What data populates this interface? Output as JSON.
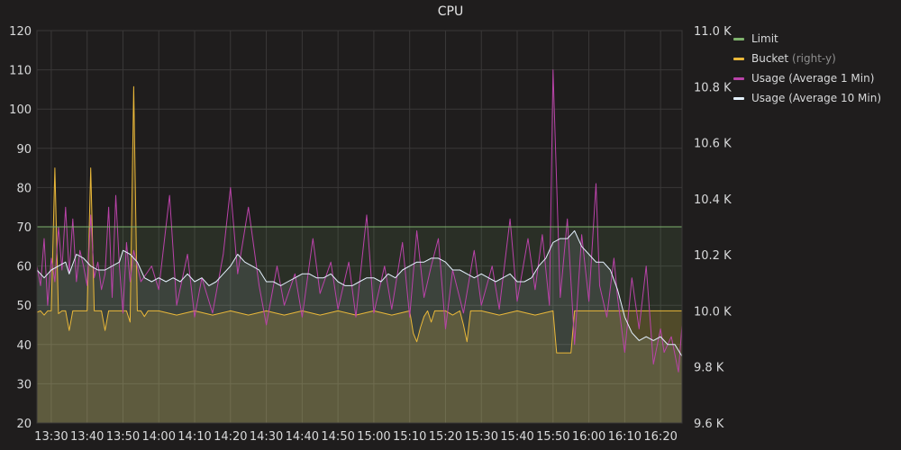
{
  "chart_data": {
    "type": "line",
    "title": "CPU",
    "x_ticks": [
      "13:30",
      "13:40",
      "13:50",
      "14:00",
      "14:10",
      "14:20",
      "14:30",
      "14:40",
      "14:50",
      "15:00",
      "15:10",
      "15:20",
      "15:30",
      "15:40",
      "15:50",
      "16:00",
      "16:10",
      "16:20"
    ],
    "y_left_ticks": [
      "20",
      "30",
      "40",
      "50",
      "60",
      "70",
      "80",
      "90",
      "100",
      "110",
      "120"
    ],
    "y_right_ticks": [
      "9.6 K",
      "9.8 K",
      "10.0 K",
      "10.2 K",
      "10.4 K",
      "10.6 K",
      "10.8 K",
      "11.0 K"
    ],
    "ylim_left": [
      20,
      120
    ],
    "ylim_right": [
      9600,
      11000
    ],
    "time_start": "13:26",
    "time_end": "16:26",
    "grid": true,
    "legend_position": "right",
    "series": [
      {
        "name": "Limit",
        "axis": "left",
        "color": "#7eb26d",
        "points": [
          [
            "13:26",
            70
          ],
          [
            "16:26",
            70
          ]
        ]
      },
      {
        "name": "Bucket",
        "note": "(right-y)",
        "axis": "right",
        "color": "#eab839",
        "points": [
          [
            "13:26",
            9995
          ],
          [
            "13:27",
            10000
          ],
          [
            "13:28",
            9985
          ],
          [
            "13:29",
            10000
          ],
          [
            "13:30",
            10000
          ],
          [
            "13:31",
            10510
          ],
          [
            "13:32",
            9990
          ],
          [
            "13:33",
            10000
          ],
          [
            "13:34",
            10000
          ],
          [
            "13:35",
            9930
          ],
          [
            "13:36",
            10000
          ],
          [
            "13:37",
            10000
          ],
          [
            "13:38",
            10000
          ],
          [
            "13:39",
            10000
          ],
          [
            "13:40",
            10000
          ],
          [
            "13:41",
            10510
          ],
          [
            "13:42",
            10000
          ],
          [
            "13:43",
            10000
          ],
          [
            "13:44",
            10000
          ],
          [
            "13:45",
            9930
          ],
          [
            "13:46",
            10000
          ],
          [
            "13:47",
            10000
          ],
          [
            "13:48",
            10000
          ],
          [
            "13:49",
            10000
          ],
          [
            "13:50",
            10000
          ],
          [
            "13:51",
            10000
          ],
          [
            "13:52",
            9960
          ],
          [
            "13:53",
            10800
          ],
          [
            "13:54",
            10000
          ],
          [
            "13:55",
            10000
          ],
          [
            "13:56",
            9980
          ],
          [
            "13:57",
            10000
          ],
          [
            "13:58",
            10000
          ],
          [
            "14:00",
            10000
          ],
          [
            "14:05",
            9985
          ],
          [
            "14:10",
            10000
          ],
          [
            "14:15",
            9985
          ],
          [
            "14:20",
            10000
          ],
          [
            "14:25",
            9985
          ],
          [
            "14:30",
            10000
          ],
          [
            "14:35",
            9985
          ],
          [
            "14:40",
            10000
          ],
          [
            "14:45",
            9985
          ],
          [
            "14:50",
            10000
          ],
          [
            "14:55",
            9985
          ],
          [
            "15:00",
            10000
          ],
          [
            "15:05",
            9985
          ],
          [
            "15:10",
            10000
          ],
          [
            "15:11",
            9920
          ],
          [
            "15:12",
            9890
          ],
          [
            "15:13",
            9940
          ],
          [
            "15:14",
            9980
          ],
          [
            "15:15",
            10000
          ],
          [
            "15:16",
            9960
          ],
          [
            "15:17",
            10000
          ],
          [
            "15:18",
            10000
          ],
          [
            "15:20",
            10000
          ],
          [
            "15:22",
            9985
          ],
          [
            "15:24",
            10000
          ],
          [
            "15:25",
            9950
          ],
          [
            "15:26",
            9890
          ],
          [
            "15:27",
            10000
          ],
          [
            "15:30",
            10000
          ],
          [
            "15:35",
            9985
          ],
          [
            "15:40",
            10000
          ],
          [
            "15:45",
            9985
          ],
          [
            "15:50",
            10000
          ],
          [
            "15:51",
            9850
          ],
          [
            "15:52",
            9850
          ],
          [
            "15:53",
            9850
          ],
          [
            "15:54",
            9850
          ],
          [
            "15:55",
            9850
          ],
          [
            "15:56",
            10000
          ],
          [
            "16:00",
            10000
          ],
          [
            "16:05",
            10000
          ],
          [
            "16:10",
            10000
          ],
          [
            "16:15",
            10000
          ],
          [
            "16:20",
            10000
          ],
          [
            "16:26",
            10000
          ]
        ]
      },
      {
        "name": "Usage (Average 1 Min)",
        "axis": "left",
        "color": "#ba43a9",
        "points": [
          [
            "13:26",
            60
          ],
          [
            "13:27",
            55
          ],
          [
            "13:28",
            67
          ],
          [
            "13:29",
            50
          ],
          [
            "13:30",
            62
          ],
          [
            "13:31",
            56
          ],
          [
            "13:32",
            70
          ],
          [
            "13:33",
            59
          ],
          [
            "13:34",
            75
          ],
          [
            "13:35",
            58
          ],
          [
            "13:36",
            72
          ],
          [
            "13:37",
            56
          ],
          [
            "13:38",
            64
          ],
          [
            "13:39",
            60
          ],
          [
            "13:40",
            55
          ],
          [
            "13:41",
            73
          ],
          [
            "13:42",
            57
          ],
          [
            "13:43",
            61
          ],
          [
            "13:44",
            54
          ],
          [
            "13:45",
            58
          ],
          [
            "13:46",
            75
          ],
          [
            "13:47",
            52
          ],
          [
            "13:48",
            78
          ],
          [
            "13:49",
            60
          ],
          [
            "13:50",
            48
          ],
          [
            "13:51",
            66
          ],
          [
            "13:52",
            56
          ],
          [
            "13:53",
            64
          ],
          [
            "13:55",
            56
          ],
          [
            "13:58",
            60
          ],
          [
            "14:00",
            54
          ],
          [
            "14:03",
            78
          ],
          [
            "14:05",
            50
          ],
          [
            "14:08",
            63
          ],
          [
            "14:10",
            47
          ],
          [
            "14:12",
            57
          ],
          [
            "14:15",
            48
          ],
          [
            "14:18",
            63
          ],
          [
            "14:20",
            80
          ],
          [
            "14:22",
            58
          ],
          [
            "14:25",
            75
          ],
          [
            "14:28",
            55
          ],
          [
            "14:30",
            45
          ],
          [
            "14:33",
            60
          ],
          [
            "14:35",
            50
          ],
          [
            "14:38",
            58
          ],
          [
            "14:40",
            47
          ],
          [
            "14:43",
            67
          ],
          [
            "14:45",
            53
          ],
          [
            "14:48",
            61
          ],
          [
            "14:50",
            49
          ],
          [
            "14:53",
            61
          ],
          [
            "14:55",
            47
          ],
          [
            "14:58",
            73
          ],
          [
            "15:00",
            48
          ],
          [
            "15:03",
            60
          ],
          [
            "15:05",
            49
          ],
          [
            "15:08",
            66
          ],
          [
            "15:10",
            47
          ],
          [
            "15:12",
            69
          ],
          [
            "15:14",
            52
          ],
          [
            "15:16",
            60
          ],
          [
            "15:18",
            67
          ],
          [
            "15:20",
            44
          ],
          [
            "15:22",
            59
          ],
          [
            "15:25",
            48
          ],
          [
            "15:28",
            64
          ],
          [
            "15:30",
            50
          ],
          [
            "15:33",
            60
          ],
          [
            "15:35",
            49
          ],
          [
            "15:38",
            72
          ],
          [
            "15:40",
            51
          ],
          [
            "15:43",
            67
          ],
          [
            "15:45",
            54
          ],
          [
            "15:47",
            68
          ],
          [
            "15:49",
            50
          ],
          [
            "15:50",
            110
          ],
          [
            "15:52",
            52
          ],
          [
            "15:54",
            72
          ],
          [
            "15:56",
            40
          ],
          [
            "15:58",
            68
          ],
          [
            "16:00",
            51
          ],
          [
            "16:02",
            81
          ],
          [
            "16:03",
            55
          ],
          [
            "16:05",
            47
          ],
          [
            "16:07",
            62
          ],
          [
            "16:08",
            52
          ],
          [
            "16:10",
            38
          ],
          [
            "16:12",
            57
          ],
          [
            "16:14",
            44
          ],
          [
            "16:16",
            60
          ],
          [
            "16:18",
            35
          ],
          [
            "16:20",
            44
          ],
          [
            "16:21",
            38
          ],
          [
            "16:23",
            42
          ],
          [
            "16:25",
            33
          ],
          [
            "16:26",
            45
          ]
        ]
      },
      {
        "name": "Usage (Average 10 Min)",
        "axis": "left",
        "color": "#e5f2ff",
        "points": [
          [
            "13:26",
            59
          ],
          [
            "13:28",
            57
          ],
          [
            "13:30",
            59
          ],
          [
            "13:32",
            60
          ],
          [
            "13:34",
            61
          ],
          [
            "13:35",
            58
          ],
          [
            "13:37",
            63
          ],
          [
            "13:39",
            62
          ],
          [
            "13:41",
            60
          ],
          [
            "13:43",
            59
          ],
          [
            "13:45",
            59
          ],
          [
            "13:47",
            60
          ],
          [
            "13:49",
            61
          ],
          [
            "13:50",
            64
          ],
          [
            "13:52",
            63
          ],
          [
            "13:54",
            61
          ],
          [
            "13:56",
            57
          ],
          [
            "13:58",
            56
          ],
          [
            "14:00",
            57
          ],
          [
            "14:02",
            56
          ],
          [
            "14:04",
            57
          ],
          [
            "14:06",
            56
          ],
          [
            "14:08",
            58
          ],
          [
            "14:10",
            56
          ],
          [
            "14:12",
            57
          ],
          [
            "14:14",
            55
          ],
          [
            "14:16",
            56
          ],
          [
            "14:18",
            58
          ],
          [
            "14:20",
            60
          ],
          [
            "14:22",
            63
          ],
          [
            "14:24",
            61
          ],
          [
            "14:26",
            60
          ],
          [
            "14:28",
            59
          ],
          [
            "14:30",
            56
          ],
          [
            "14:32",
            56
          ],
          [
            "14:34",
            55
          ],
          [
            "14:36",
            56
          ],
          [
            "14:38",
            57
          ],
          [
            "14:40",
            58
          ],
          [
            "14:42",
            58
          ],
          [
            "14:44",
            57
          ],
          [
            "14:46",
            57
          ],
          [
            "14:48",
            58
          ],
          [
            "14:50",
            56
          ],
          [
            "14:52",
            55
          ],
          [
            "14:54",
            55
          ],
          [
            "14:56",
            56
          ],
          [
            "14:58",
            57
          ],
          [
            "15:00",
            57
          ],
          [
            "15:02",
            56
          ],
          [
            "15:04",
            58
          ],
          [
            "15:06",
            57
          ],
          [
            "15:08",
            59
          ],
          [
            "15:10",
            60
          ],
          [
            "15:12",
            61
          ],
          [
            "15:14",
            61
          ],
          [
            "15:16",
            62
          ],
          [
            "15:18",
            62
          ],
          [
            "15:20",
            61
          ],
          [
            "15:22",
            59
          ],
          [
            "15:24",
            59
          ],
          [
            "15:26",
            58
          ],
          [
            "15:28",
            57
          ],
          [
            "15:30",
            58
          ],
          [
            "15:32",
            57
          ],
          [
            "15:34",
            56
          ],
          [
            "15:36",
            57
          ],
          [
            "15:38",
            58
          ],
          [
            "15:40",
            56
          ],
          [
            "15:42",
            56
          ],
          [
            "15:44",
            57
          ],
          [
            "15:46",
            60
          ],
          [
            "15:48",
            62
          ],
          [
            "15:50",
            66
          ],
          [
            "15:52",
            67
          ],
          [
            "15:54",
            67
          ],
          [
            "15:56",
            69
          ],
          [
            "15:58",
            65
          ],
          [
            "16:00",
            63
          ],
          [
            "16:02",
            61
          ],
          [
            "16:04",
            61
          ],
          [
            "16:06",
            59
          ],
          [
            "16:08",
            54
          ],
          [
            "16:10",
            47
          ],
          [
            "16:12",
            43
          ],
          [
            "16:14",
            41
          ],
          [
            "16:16",
            42
          ],
          [
            "16:18",
            41
          ],
          [
            "16:20",
            42
          ],
          [
            "16:22",
            40
          ],
          [
            "16:24",
            40
          ],
          [
            "16:26",
            37
          ]
        ]
      }
    ]
  }
}
